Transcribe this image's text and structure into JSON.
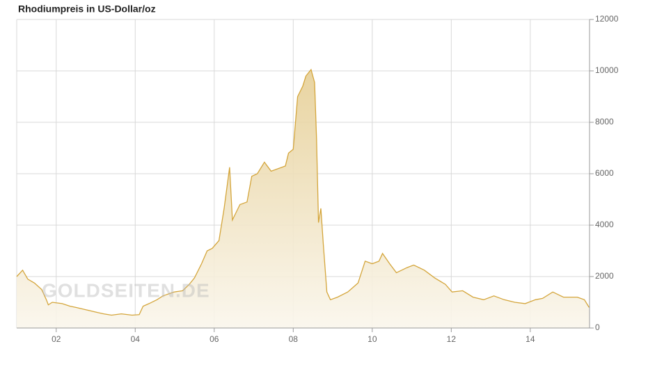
{
  "chart_data": {
    "type": "area",
    "title": "Rhodiumpreis in US-Dollar/oz",
    "watermark": "GOLDSEITEN.DE",
    "x": [
      2001.0,
      2001.15,
      2001.28,
      2001.45,
      2001.63,
      2001.75,
      2001.8,
      2001.9,
      2002.15,
      2002.35,
      2002.5,
      2002.78,
      2003.05,
      2003.2,
      2003.4,
      2003.65,
      2003.92,
      2004.1,
      2004.2,
      2004.35,
      2004.55,
      2004.7,
      2004.98,
      2005.2,
      2005.37,
      2005.5,
      2005.68,
      2005.82,
      2005.95,
      2006.12,
      2006.25,
      2006.39,
      2006.46,
      2006.65,
      2006.83,
      2006.95,
      2007.09,
      2007.27,
      2007.44,
      2007.62,
      2007.8,
      2007.88,
      2008.0,
      2008.11,
      2008.24,
      2008.32,
      2008.45,
      2008.54,
      2008.59,
      2008.64,
      2008.7,
      2008.76,
      2008.85,
      2008.94,
      2009.12,
      2009.38,
      2009.64,
      2009.82,
      2010.0,
      2010.17,
      2010.26,
      2010.44,
      2010.61,
      2010.88,
      2011.05,
      2011.32,
      2011.58,
      2011.85,
      2012.02,
      2012.29,
      2012.55,
      2012.82,
      2013.08,
      2013.34,
      2013.61,
      2013.87,
      2014.13,
      2014.31,
      2014.57,
      2014.84,
      2015.19,
      2015.37,
      2015.49
    ],
    "series": [
      {
        "color": "#d4a53a",
        "values": [
          2000,
          2250,
          1900,
          1750,
          1500,
          1100,
          900,
          1000,
          950,
          850,
          800,
          700,
          600,
          550,
          500,
          550,
          500,
          520,
          850,
          950,
          1100,
          1250,
          1400,
          1450,
          1700,
          1950,
          2500,
          3000,
          3100,
          3400,
          4650,
          6250,
          4200,
          4800,
          4900,
          5900,
          6000,
          6450,
          6100,
          6200,
          6300,
          6800,
          6950,
          9000,
          9400,
          9800,
          10050,
          9550,
          7350,
          4100,
          4650,
          3300,
          1400,
          1100,
          1200,
          1400,
          1750,
          2600,
          2500,
          2600,
          2900,
          2500,
          2150,
          2350,
          2450,
          2250,
          1950,
          1700,
          1400,
          1450,
          1200,
          1100,
          1250,
          1100,
          1000,
          950,
          1100,
          1150,
          1400,
          1200,
          1200,
          1100,
          800
        ]
      }
    ],
    "xlim": [
      2001.0,
      2015.5
    ],
    "xticks": [
      {
        "value": 2002,
        "label": "02"
      },
      {
        "value": 2004,
        "label": "04"
      },
      {
        "value": 2006,
        "label": "06"
      },
      {
        "value": 2008,
        "label": "08"
      },
      {
        "value": 2010,
        "label": "10"
      },
      {
        "value": 2012,
        "label": "12"
      },
      {
        "value": 2014,
        "label": "14"
      }
    ],
    "ylim": [
      0,
      12000
    ],
    "yticks": [
      0,
      2000,
      4000,
      6000,
      8000,
      10000,
      12000
    ],
    "grid": true
  }
}
